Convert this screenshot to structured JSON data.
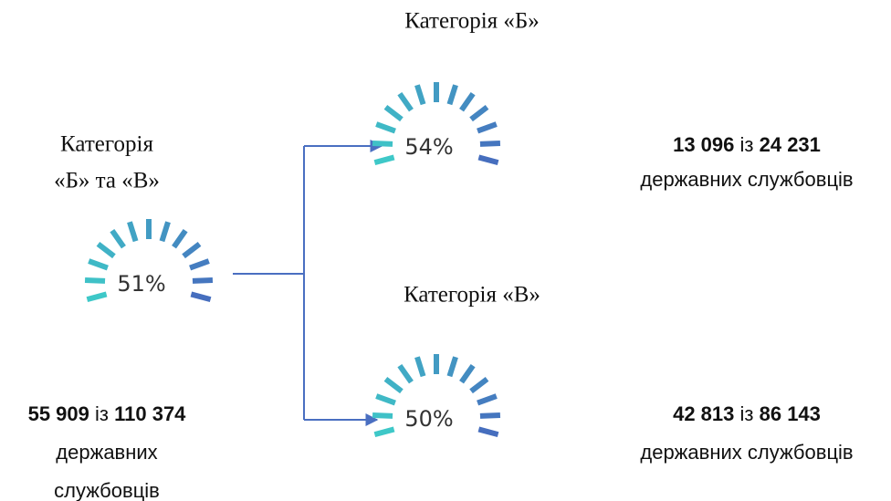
{
  "nodes": [
    {
      "title_lines": [
        "Категорія",
        "«Б» та «В»"
      ],
      "percent": "51%",
      "count": "55 909",
      "joiner": "із",
      "total": "110 374",
      "caption_lines": [
        "державних",
        "службовців"
      ]
    },
    {
      "title_lines": [
        "Категорія «Б»"
      ],
      "percent": "54%",
      "count": "13 096",
      "joiner": "із",
      "total": "24 231",
      "caption_lines": [
        "державних службовців"
      ]
    },
    {
      "title_lines": [
        "Категорія «В»"
      ],
      "percent": "50%",
      "count": "42 813",
      "joiner": "із",
      "total": "86 143",
      "caption_lines": [
        "державних службовців"
      ]
    }
  ]
}
